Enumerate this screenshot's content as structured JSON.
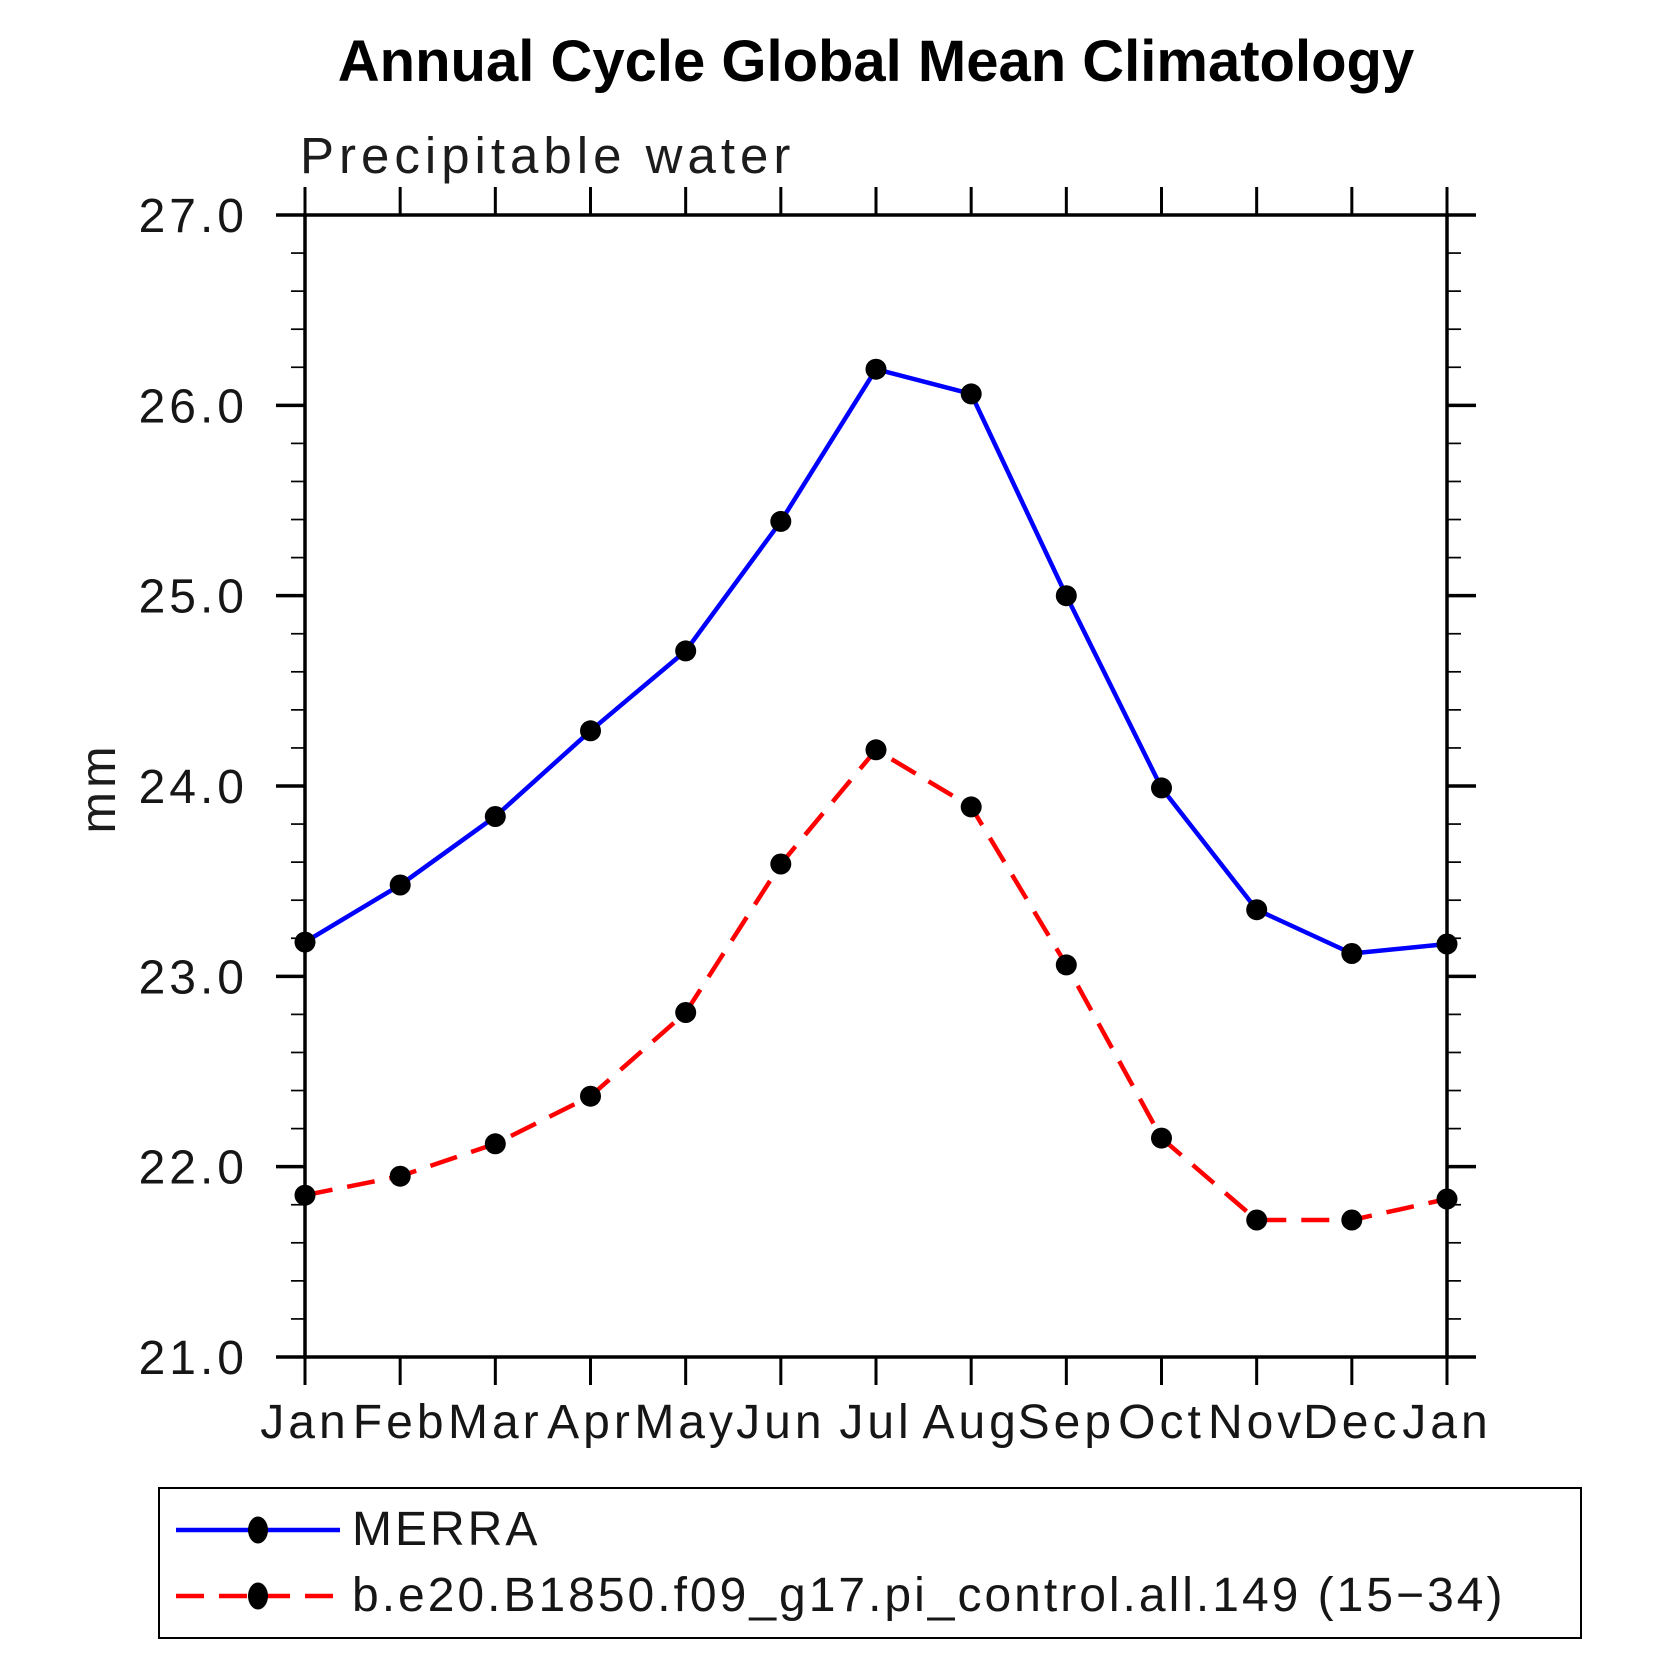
{
  "title": "Annual Cycle Global Mean Climatology",
  "subtitle": "Precipitable water",
  "ylabel": "mm",
  "chart_data": {
    "type": "line",
    "x_categories": [
      "Jan",
      "Feb",
      "Mar",
      "Apr",
      "May",
      "Jun",
      "Jul",
      "Aug",
      "Sep",
      "Oct",
      "Nov",
      "Dec",
      "Jan"
    ],
    "series": [
      {
        "name": "MERRA",
        "color": "#0000ff",
        "line_style": "solid",
        "marker": "filled-circle",
        "marker_color": "#000000",
        "values": [
          23.18,
          23.48,
          23.84,
          24.29,
          24.71,
          25.39,
          26.19,
          26.06,
          25.0,
          23.99,
          23.35,
          23.12,
          23.17
        ]
      },
      {
        "name": "b.e20.B1850.f09_g17.pi_control.all.149 (15−34)",
        "color": "#ff0000",
        "line_style": "dashed",
        "marker": "filled-circle",
        "marker_color": "#000000",
        "values": [
          21.85,
          21.95,
          22.12,
          22.37,
          22.81,
          23.59,
          24.19,
          23.89,
          23.06,
          22.15,
          21.72,
          21.72,
          21.83
        ]
      }
    ],
    "ylim": [
      21.0,
      27.0
    ],
    "yticks": {
      "values": [
        27.0,
        26.0,
        25.0,
        24.0,
        23.0,
        22.0,
        21.0
      ],
      "labels": [
        "27.0",
        "26.0",
        "25.0",
        "24.0",
        "23.0",
        "22.0",
        "21.0"
      ],
      "minor_step": 0.2
    },
    "grid": false,
    "legend_position": "bottom-left-box"
  }
}
